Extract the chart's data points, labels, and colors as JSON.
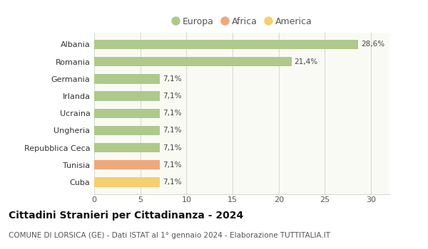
{
  "categories": [
    "Albania",
    "Romania",
    "Germania",
    "Irlanda",
    "Ucraina",
    "Ungheria",
    "Repubblica Ceca",
    "Tunisia",
    "Cuba"
  ],
  "values": [
    28.6,
    21.4,
    7.1,
    7.1,
    7.1,
    7.1,
    7.1,
    7.1,
    7.1
  ],
  "colors": [
    "#aec98a",
    "#aec98a",
    "#aec98a",
    "#aec98a",
    "#aec98a",
    "#aec98a",
    "#aec98a",
    "#f0a87a",
    "#f5d06e"
  ],
  "labels": [
    "28,6%",
    "21,4%",
    "7,1%",
    "7,1%",
    "7,1%",
    "7,1%",
    "7,1%",
    "7,1%",
    "7,1%"
  ],
  "legend": [
    {
      "label": "Europa",
      "color": "#aec98a"
    },
    {
      "label": "Africa",
      "color": "#f0a87a"
    },
    {
      "label": "America",
      "color": "#f5d06e"
    }
  ],
  "xlim": [
    0,
    32
  ],
  "xticks": [
    0,
    5,
    10,
    15,
    20,
    25,
    30
  ],
  "title": "Cittadini Stranieri per Cittadinanza - 2024",
  "subtitle": "COMUNE DI LORSICA (GE) - Dati ISTAT al 1° gennaio 2024 - Elaborazione TUTTITALIA.IT",
  "title_fontsize": 10,
  "subtitle_fontsize": 7.5,
  "background_color": "#ffffff",
  "plot_bg_color": "#fafaf5",
  "grid_color": "#d8d8d8",
  "bar_height": 0.55,
  "label_fontsize": 7.5,
  "ytick_fontsize": 8,
  "xtick_fontsize": 8
}
